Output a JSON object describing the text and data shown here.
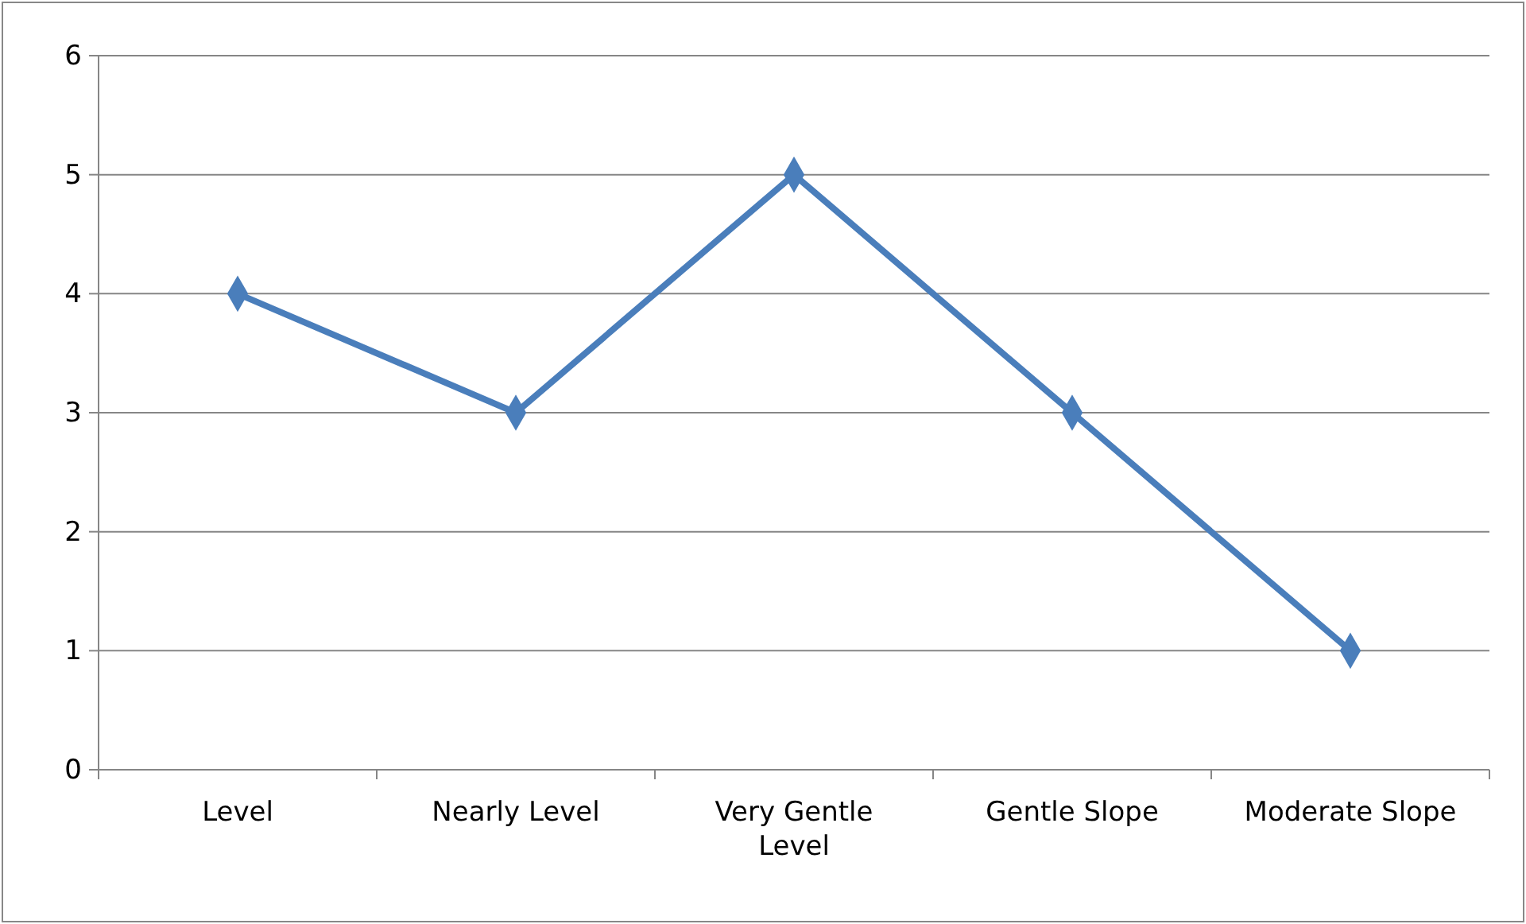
{
  "chart_data": {
    "type": "line",
    "categories": [
      "Level",
      "Nearly Level",
      "Very Gentle Level",
      "Gentle Slope",
      "Moderate Slope"
    ],
    "series": [
      {
        "color": "#4a7ebb",
        "values": [
          4,
          3,
          5,
          3,
          1
        ]
      }
    ],
    "ylim": [
      0,
      6
    ],
    "yticks": [
      0,
      1,
      2,
      3,
      4,
      5,
      6
    ],
    "grid": "y",
    "marker": "diamond",
    "line_style": "solid"
  }
}
